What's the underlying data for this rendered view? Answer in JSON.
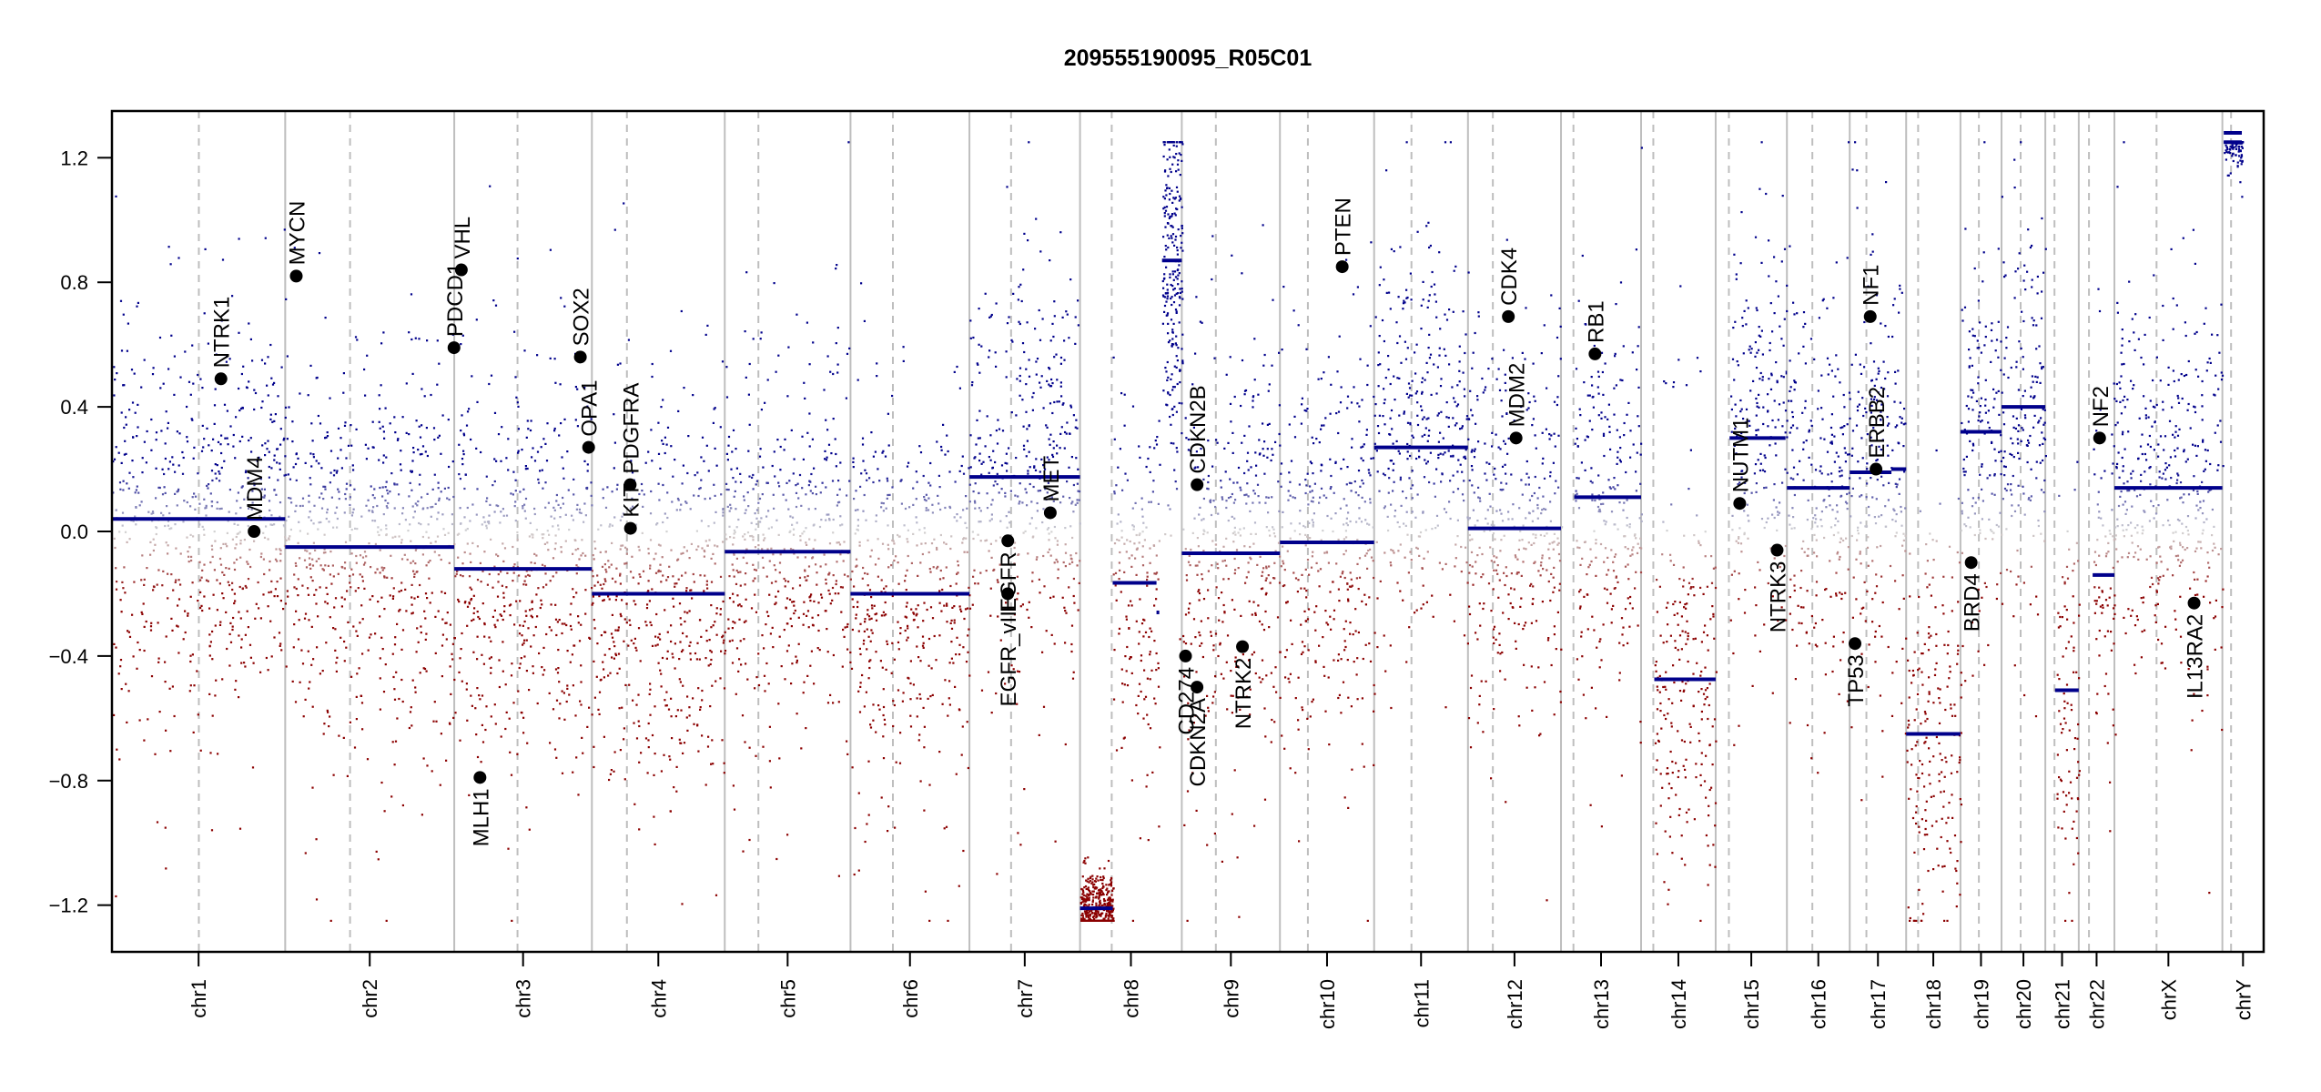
{
  "chart_data": {
    "type": "scatter",
    "title": "209555190095_R05C01",
    "xlabel": "",
    "ylabel": "",
    "ylim": [
      -1.35,
      1.35
    ],
    "y_ticks": [
      "-1.2",
      "-0.8",
      "-0.4",
      "0.0",
      "0.4",
      "0.8",
      "1.2"
    ],
    "grid": false,
    "x_unit": "Mb",
    "point_colors": {
      "low": "#8B0000",
      "mid": "#D3D3D3",
      "high": "#00008B"
    },
    "segment_color": "#00008B",
    "gene_marker_color": "#000000",
    "chromosomes": [
      {
        "name": "chr1",
        "length": 249.25,
        "centromere": 125.0
      },
      {
        "name": "chr2",
        "length": 243.2,
        "centromere": 93.3
      },
      {
        "name": "chr3",
        "length": 198.0,
        "centromere": 91.0
      },
      {
        "name": "chr4",
        "length": 191.15,
        "centromere": 50.4
      },
      {
        "name": "chr5",
        "length": 180.9,
        "centromere": 48.4
      },
      {
        "name": "chr6",
        "length": 171.1,
        "centromere": 61.0
      },
      {
        "name": "chr7",
        "length": 159.1,
        "centromere": 59.9
      },
      {
        "name": "chr8",
        "length": 146.4,
        "centromere": 45.6
      },
      {
        "name": "chr9",
        "length": 141.2,
        "centromere": 49.0
      },
      {
        "name": "chr10",
        "length": 135.5,
        "centromere": 40.2
      },
      {
        "name": "chr11",
        "length": 135.0,
        "centromere": 53.7
      },
      {
        "name": "chr12",
        "length": 133.85,
        "centromere": 35.8
      },
      {
        "name": "chr13",
        "length": 115.2,
        "centromere": 17.9
      },
      {
        "name": "chr14",
        "length": 107.3,
        "centromere": 17.6
      },
      {
        "name": "chr15",
        "length": 102.5,
        "centromere": 19.0
      },
      {
        "name": "chr16",
        "length": 90.35,
        "centromere": 36.6
      },
      {
        "name": "chr17",
        "length": 81.2,
        "centromere": 24.0
      },
      {
        "name": "chr18",
        "length": 78.1,
        "centromere": 17.2
      },
      {
        "name": "chr19",
        "length": 59.1,
        "centromere": 26.5
      },
      {
        "name": "chr20",
        "length": 63.0,
        "centromere": 27.5
      },
      {
        "name": "chr21",
        "length": 48.1,
        "centromere": 13.2
      },
      {
        "name": "chr22",
        "length": 51.3,
        "centromere": 14.7
      },
      {
        "name": "chrX",
        "length": 155.3,
        "centromere": 60.6
      },
      {
        "name": "chrY",
        "length": 59.4,
        "centromere": 12.5
      }
    ],
    "segments": [
      {
        "chr": "chr1",
        "start": 0,
        "end": 249.25,
        "value": 0.04
      },
      {
        "chr": "chr2",
        "start": 0,
        "end": 243.2,
        "value": -0.05
      },
      {
        "chr": "chr3",
        "start": 0,
        "end": 198.0,
        "value": -0.12
      },
      {
        "chr": "chr4",
        "start": 0,
        "end": 191.15,
        "value": -0.2
      },
      {
        "chr": "chr5",
        "start": 0,
        "end": 180.9,
        "value": -0.065
      },
      {
        "chr": "chr6",
        "start": 0,
        "end": 171.1,
        "value": -0.2
      },
      {
        "chr": "chr7",
        "start": 0,
        "end": 159.1,
        "value": 0.175
      },
      {
        "chr": "chr8",
        "start": 0,
        "end": 47,
        "value": -1.21
      },
      {
        "chr": "chr8",
        "start": 47,
        "end": 110,
        "value": -0.165
      },
      {
        "chr": "chr8",
        "start": 110,
        "end": 114,
        "value": -0.26
      },
      {
        "chr": "chr8",
        "start": 118,
        "end": 146.4,
        "value": 0.87
      },
      {
        "chr": "chr9",
        "start": 0,
        "end": 141.2,
        "value": -0.07
      },
      {
        "chr": "chr10",
        "start": 0,
        "end": 135.5,
        "value": -0.035
      },
      {
        "chr": "chr11",
        "start": 0,
        "end": 135.0,
        "value": 0.27
      },
      {
        "chr": "chr12",
        "start": 0,
        "end": 133.85,
        "value": 0.01
      },
      {
        "chr": "chr13",
        "start": 19,
        "end": 115.2,
        "value": 0.11
      },
      {
        "chr": "chr14",
        "start": 19,
        "end": 107.3,
        "value": -0.475
      },
      {
        "chr": "chr15",
        "start": 20,
        "end": 100.5,
        "value": 0.3
      },
      {
        "chr": "chr15",
        "start": 100.5,
        "end": 102.5,
        "value": 0.51
      },
      {
        "chr": "chr16",
        "start": 0,
        "end": 90.35,
        "value": 0.14
      },
      {
        "chr": "chr17",
        "start": 0,
        "end": 60,
        "value": 0.19
      },
      {
        "chr": "chr17",
        "start": 60,
        "end": 81.2,
        "value": 0.2
      },
      {
        "chr": "chr18",
        "start": 0,
        "end": 78.1,
        "value": -0.65
      },
      {
        "chr": "chr19",
        "start": 0,
        "end": 59.1,
        "value": 0.32
      },
      {
        "chr": "chr20",
        "start": 0,
        "end": 63.0,
        "value": 0.4
      },
      {
        "chr": "chr21",
        "start": 14,
        "end": 48.1,
        "value": -0.51
      },
      {
        "chr": "chr22",
        "start": 20,
        "end": 51.3,
        "value": -0.14
      },
      {
        "chr": "chrX",
        "start": 0,
        "end": 155.3,
        "value": 0.14
      },
      {
        "chr": "chrY",
        "start": 2,
        "end": 28,
        "value": 1.28
      },
      {
        "chr": "chrY",
        "start": 2,
        "end": 28,
        "value": 1.25
      }
    ],
    "genes": [
      {
        "name": "NTRK1",
        "chr": "chr1",
        "pos": 156.8,
        "value": 0.49
      },
      {
        "name": "MDM4",
        "chr": "chr1",
        "pos": 204.5,
        "value": 0.0
      },
      {
        "name": "MYCN",
        "chr": "chr2",
        "pos": 15.9,
        "value": 0.82
      },
      {
        "name": "PDCD1",
        "chr": "chr2",
        "pos": 242.8,
        "value": 0.59
      },
      {
        "name": "VHL",
        "chr": "chr3",
        "pos": 10.2,
        "value": 0.84
      },
      {
        "name": "MLH1",
        "chr": "chr3",
        "pos": 37.0,
        "value": -0.79
      },
      {
        "name": "SOX2",
        "chr": "chr3",
        "pos": 181.4,
        "value": 0.56
      },
      {
        "name": "OPA1",
        "chr": "chr3",
        "pos": 193.3,
        "value": 0.27
      },
      {
        "name": "KIT",
        "chr": "chr4",
        "pos": 55.5,
        "value": 0.01
      },
      {
        "name": "PDGFRA",
        "chr": "chr4",
        "pos": 55.1,
        "value": 0.15
      },
      {
        "name": "EGFR",
        "chr": "chr7",
        "pos": 55.2,
        "value": -0.03
      },
      {
        "name": "EGFR_vIII",
        "chr": "chr7",
        "pos": 55.1,
        "value": -0.2
      },
      {
        "name": "MET",
        "chr": "chr7",
        "pos": 116.3,
        "value": 0.06
      },
      {
        "name": "CD274",
        "chr": "chr9",
        "pos": 5.4,
        "value": -0.4
      },
      {
        "name": "CDKN2A",
        "chr": "chr9",
        "pos": 21.9,
        "value": -0.5
      },
      {
        "name": "CDKN2B",
        "chr": "chr9",
        "pos": 22.0,
        "value": 0.15
      },
      {
        "name": "NTRK2",
        "chr": "chr9",
        "pos": 87.3,
        "value": -0.37
      },
      {
        "name": "PTEN",
        "chr": "chr10",
        "pos": 89.6,
        "value": 0.85
      },
      {
        "name": "CDK4",
        "chr": "chr12",
        "pos": 58.1,
        "value": 0.69
      },
      {
        "name": "MDM2",
        "chr": "chr12",
        "pos": 69.2,
        "value": 0.3
      },
      {
        "name": "RB1",
        "chr": "chr13",
        "pos": 48.9,
        "value": 0.57
      },
      {
        "name": "NUTM1",
        "chr": "chr15",
        "pos": 34.6,
        "value": 0.09
      },
      {
        "name": "NTRK3",
        "chr": "chr15",
        "pos": 88.4,
        "value": -0.06
      },
      {
        "name": "TP53",
        "chr": "chr17",
        "pos": 7.6,
        "value": -0.36
      },
      {
        "name": "NF1",
        "chr": "chr17",
        "pos": 29.5,
        "value": 0.69
      },
      {
        "name": "ERBB2",
        "chr": "chr17",
        "pos": 37.8,
        "value": 0.2
      },
      {
        "name": "BRD4",
        "chr": "chr19",
        "pos": 15.4,
        "value": -0.1
      },
      {
        "name": "NF2",
        "chr": "chr22",
        "pos": 30.0,
        "value": 0.3
      },
      {
        "name": "IL13RA2",
        "chr": "chrX",
        "pos": 114.6,
        "value": -0.23
      }
    ]
  }
}
